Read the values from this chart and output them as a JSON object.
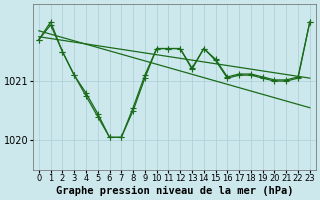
{
  "background_color": "#cce8ec",
  "grid_color": "#aacdd4",
  "line_color": "#1a6b1a",
  "xlabel": "Graphe pression niveau de la mer (hPa)",
  "xlabel_fontsize": 7.5,
  "ylabel_fontsize": 7,
  "tick_fontsize": 6,
  "xlim": [
    -0.5,
    23.5
  ],
  "ylim": [
    1019.5,
    1022.3
  ],
  "yticks": [
    1020,
    1021
  ],
  "xticks": [
    0,
    1,
    2,
    3,
    4,
    5,
    6,
    7,
    8,
    9,
    10,
    11,
    12,
    13,
    14,
    15,
    16,
    17,
    18,
    19,
    20,
    21,
    22,
    23
  ],
  "trend1_x": [
    0,
    23
  ],
  "trend1_y": [
    1021.75,
    1021.05
  ],
  "trend2_x": [
    0,
    23
  ],
  "trend2_y": [
    1021.85,
    1020.55
  ],
  "series_jagged1_x": [
    0,
    1,
    2,
    3,
    4,
    5,
    6,
    7,
    8,
    9,
    10,
    11,
    12,
    13,
    14,
    15,
    16,
    17,
    18,
    19,
    20,
    21,
    22,
    23
  ],
  "series_jagged1_y": [
    1021.7,
    1021.95,
    1021.5,
    1021.1,
    1020.8,
    1020.45,
    1020.05,
    1020.05,
    1020.5,
    1021.05,
    1021.55,
    1021.55,
    1021.55,
    1021.2,
    1021.55,
    1021.35,
    1021.05,
    1021.1,
    1021.1,
    1021.05,
    1021.0,
    1021.0,
    1021.05,
    1022.0
  ],
  "series_jagged2_x": [
    0,
    1,
    2,
    3,
    4,
    5,
    6,
    7,
    8,
    9,
    10,
    11,
    12,
    13,
    14,
    15,
    16,
    17,
    18,
    19,
    20,
    21,
    22,
    23
  ],
  "series_jagged2_y": [
    1021.7,
    1022.0,
    1021.5,
    1021.1,
    1020.75,
    1020.4,
    1020.05,
    1020.05,
    1020.55,
    1021.1,
    1021.55,
    1021.55,
    1021.55,
    1021.22,
    1021.55,
    1021.37,
    1021.07,
    1021.12,
    1021.12,
    1021.07,
    1021.02,
    1021.02,
    1021.07,
    1022.0
  ],
  "marker": "+",
  "markersize": 4.0,
  "linewidth": 0.9
}
